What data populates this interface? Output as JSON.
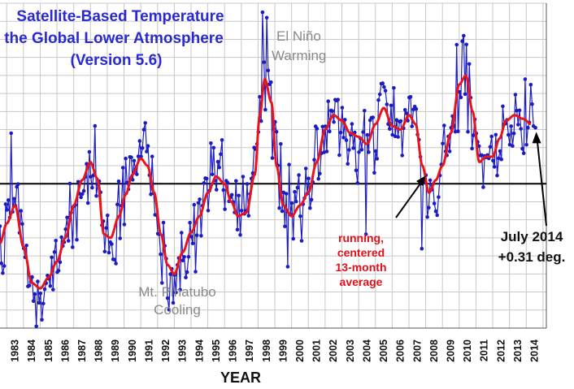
{
  "chart_data": {
    "type": "line",
    "title": [
      "Satellite-Based Temperature",
      "the Global Lower Atmosphere",
      "(Version 5.6)"
    ],
    "xlabel": "YEAR",
    "ylabel": "",
    "x_ticks": [
      "1983",
      "1984",
      "1985",
      "1986",
      "1987",
      "1988",
      "1989",
      "1990",
      "1991",
      "1992",
      "1993",
      "1994",
      "1995",
      "1996",
      "1997",
      "1998",
      "1999",
      "2000",
      "2001",
      "2002",
      "2003",
      "2004",
      "2005",
      "2006",
      "2007",
      "2008",
      "2009",
      "2010",
      "2011",
      "2012",
      "2013",
      "2014"
    ],
    "xlim": [
      1982.6,
      2015.2
    ],
    "ylim": [
      -0.8,
      1.0
    ],
    "zero_line": 0,
    "series": [
      {
        "name": "monthly",
        "color": "#1c1cc4"
      },
      {
        "name": "running, centered 13-month average",
        "color": "#e8141c"
      }
    ],
    "running_anchors": [
      [
        1982.6,
        -0.33
      ],
      [
        1983.0,
        -0.22
      ],
      [
        1983.5,
        -0.12
      ],
      [
        1984.0,
        -0.35
      ],
      [
        1984.5,
        -0.55
      ],
      [
        1985.0,
        -0.58
      ],
      [
        1985.5,
        -0.52
      ],
      [
        1986.0,
        -0.43
      ],
      [
        1986.5,
        -0.3
      ],
      [
        1987.0,
        -0.12
      ],
      [
        1987.5,
        0.02
      ],
      [
        1988.0,
        0.12
      ],
      [
        1988.4,
        0.03
      ],
      [
        1988.8,
        -0.28
      ],
      [
        1989.2,
        -0.3
      ],
      [
        1989.7,
        -0.18
      ],
      [
        1990.1,
        -0.06
      ],
      [
        1990.5,
        0.05
      ],
      [
        1991.0,
        0.14
      ],
      [
        1991.4,
        0.1
      ],
      [
        1991.8,
        -0.05
      ],
      [
        1992.2,
        -0.28
      ],
      [
        1992.6,
        -0.45
      ],
      [
        1993.0,
        -0.5
      ],
      [
        1993.5,
        -0.38
      ],
      [
        1994.0,
        -0.27
      ],
      [
        1994.5,
        -0.18
      ],
      [
        1995.0,
        -0.05
      ],
      [
        1995.5,
        0.04
      ],
      [
        1996.0,
        0.0
      ],
      [
        1996.4,
        -0.1
      ],
      [
        1996.8,
        -0.18
      ],
      [
        1997.3,
        -0.16
      ],
      [
        1997.8,
        0.05
      ],
      [
        1998.1,
        0.38
      ],
      [
        1998.4,
        0.58
      ],
      [
        1998.8,
        0.45
      ],
      [
        1999.1,
        0.1
      ],
      [
        1999.5,
        -0.12
      ],
      [
        2000.0,
        -0.18
      ],
      [
        2000.5,
        -0.12
      ],
      [
        2001.0,
        -0.05
      ],
      [
        2001.5,
        0.12
      ],
      [
        2002.0,
        0.3
      ],
      [
        2002.5,
        0.38
      ],
      [
        2003.0,
        0.35
      ],
      [
        2003.5,
        0.28
      ],
      [
        2004.0,
        0.26
      ],
      [
        2004.5,
        0.22
      ],
      [
        2005.0,
        0.33
      ],
      [
        2005.5,
        0.42
      ],
      [
        2006.0,
        0.32
      ],
      [
        2006.5,
        0.3
      ],
      [
        2007.0,
        0.38
      ],
      [
        2007.4,
        0.33
      ],
      [
        2007.8,
        0.1
      ],
      [
        2008.2,
        -0.05
      ],
      [
        2008.6,
        0.02
      ],
      [
        2009.0,
        0.1
      ],
      [
        2009.5,
        0.28
      ],
      [
        2010.0,
        0.55
      ],
      [
        2010.4,
        0.6
      ],
      [
        2010.8,
        0.4
      ],
      [
        2011.2,
        0.12
      ],
      [
        2011.6,
        0.15
      ],
      [
        2012.0,
        0.15
      ],
      [
        2012.4,
        0.25
      ],
      [
        2012.8,
        0.35
      ],
      [
        2013.3,
        0.38
      ],
      [
        2013.8,
        0.36
      ],
      [
        2014.3,
        0.33
      ]
    ],
    "monthly_noise_seed": 20140731,
    "monthly_noise_amplitude": 0.14,
    "monthly_extremes": [
      [
        1998.3,
        0.95
      ],
      [
        1998.5,
        0.92
      ],
      [
        1984.8,
        -0.8
      ],
      [
        1984.9,
        -0.66
      ],
      [
        1999.8,
        -0.46
      ],
      [
        1992.9,
        -0.66
      ],
      [
        1991.2,
        0.3
      ],
      [
        2010.3,
        0.82
      ],
      [
        2010.2,
        0.79
      ],
      [
        2007.8,
        -0.36
      ],
      [
        2004.4,
        -0.28
      ],
      [
        1988.3,
        0.32
      ],
      [
        1983.3,
        0.28
      ]
    ],
    "annotations": {
      "el_nino": [
        "El Niño",
        "Warming"
      ],
      "pinatubo": [
        "Mt. Pinatubo",
        "Cooling"
      ],
      "running": [
        "running,",
        "centered",
        "13-month",
        "average"
      ],
      "latest": [
        "July 2014",
        "+0.31 deg."
      ]
    },
    "latest_point": {
      "x": 2014.55,
      "y": 0.31
    }
  }
}
